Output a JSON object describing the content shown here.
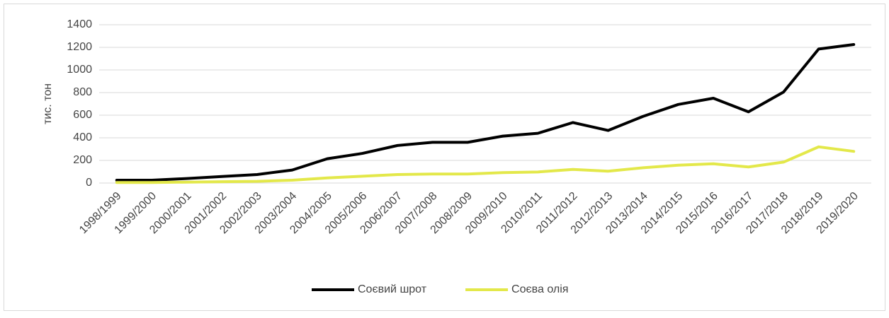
{
  "chart_data": {
    "type": "line",
    "y_label": "тис. тон",
    "categories": [
      "1998/1999",
      "1999/2000",
      "2000/2001",
      "2001/2002",
      "2002/2003",
      "2003/2004",
      "2004/2005",
      "2005/2006",
      "2006/2007",
      "2007/2008",
      "2008/2009",
      "2009/2010",
      "2010/2011",
      "2011/2012",
      "2012/2013",
      "2013/2014",
      "2014/2015",
      "2015/2016",
      "2016/2017",
      "2017/2018",
      "2018/2019",
      "2019/2020"
    ],
    "series": [
      {
        "name": "Соєвий шрот",
        "color": "#000000",
        "values": [
          25,
          25,
          40,
          58,
          75,
          115,
          215,
          262,
          332,
          360,
          360,
          415,
          440,
          535,
          465,
          590,
          695,
          750,
          630,
          805,
          1185,
          1225
        ]
      },
      {
        "name": "Соєва олія",
        "color": "#e3e84a",
        "values": [
          5,
          5,
          8,
          12,
          15,
          25,
          45,
          60,
          75,
          80,
          80,
          92,
          98,
          120,
          105,
          135,
          158,
          170,
          142,
          185,
          320,
          280
        ]
      }
    ],
    "ylim": [
      0,
      1400
    ],
    "yticks": [
      0,
      200,
      400,
      600,
      800,
      1000,
      1200,
      1400
    ],
    "grid": true,
    "legend": "bottom"
  }
}
